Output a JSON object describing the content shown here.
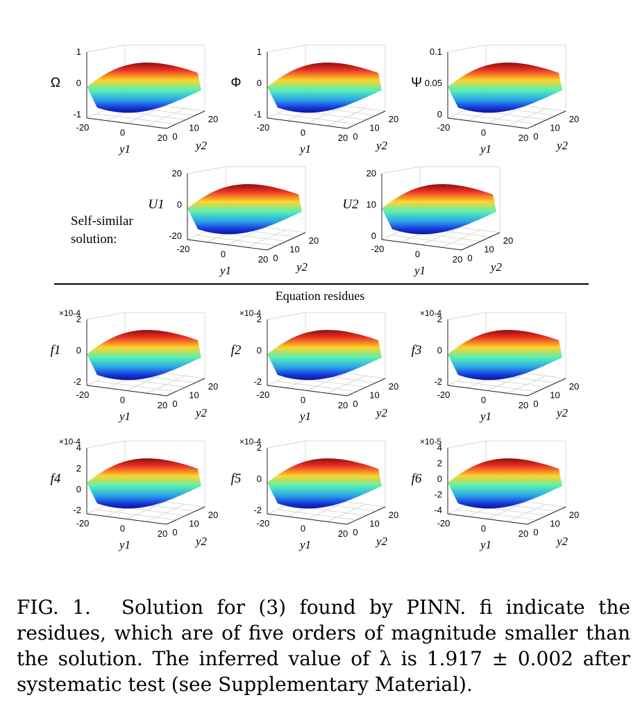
{
  "figure": {
    "side_label": "Self-similar solution:",
    "section_title": "Equation residues",
    "panels": [
      {
        "name": "omega",
        "zlabel": "Ω",
        "zticks": [
          "1",
          "0",
          "-1"
        ],
        "scale": "",
        "xlabel": "y1",
        "ylabel": "y2",
        "xticks": [
          "-20",
          "0",
          "20"
        ],
        "yticks": [
          "0",
          "10",
          "20"
        ],
        "colormap": "jet"
      },
      {
        "name": "phi",
        "zlabel": "Φ",
        "zticks": [
          "1",
          "0",
          "-1"
        ],
        "scale": "",
        "xlabel": "y1",
        "ylabel": "y2",
        "xticks": [
          "-20",
          "0",
          "20"
        ],
        "yticks": [
          "0",
          "10",
          "20"
        ],
        "colormap": "jet"
      },
      {
        "name": "psi",
        "zlabel": "Ψ",
        "zticks": [
          "0.1",
          "0.05",
          "0"
        ],
        "scale": "",
        "xlabel": "y1",
        "ylabel": "y2",
        "xticks": [
          "-20",
          "0",
          "20"
        ],
        "yticks": [
          "0",
          "10",
          "20"
        ],
        "colormap": "jet"
      },
      {
        "name": "u1",
        "zlabel": "U1",
        "zticks": [
          "20",
          "0",
          "-20"
        ],
        "scale": "",
        "xlabel": "y1",
        "ylabel": "y2",
        "xticks": [
          "-20",
          "0",
          "20"
        ],
        "yticks": [
          "0",
          "10",
          "20"
        ],
        "colormap": "jet"
      },
      {
        "name": "u2",
        "zlabel": "U2",
        "zticks": [
          "20",
          "10",
          "0"
        ],
        "scale": "",
        "xlabel": "y1",
        "ylabel": "y2",
        "xticks": [
          "-20",
          "0",
          "20"
        ],
        "yticks": [
          "0",
          "10",
          "20"
        ],
        "colormap": "jet"
      },
      {
        "name": "f1",
        "zlabel": "f1",
        "zticks": [
          "2",
          "0",
          "-2"
        ],
        "scale": "×10-4",
        "xlabel": "y1",
        "ylabel": "y2",
        "xticks": [
          "-20",
          "0",
          "20"
        ],
        "yticks": [
          "0",
          "10",
          "20"
        ],
        "colormap": "jet"
      },
      {
        "name": "f2",
        "zlabel": "f2",
        "zticks": [
          "2",
          "0",
          "-2"
        ],
        "scale": "×10-4",
        "xlabel": "y1",
        "ylabel": "y2",
        "xticks": [
          "-20",
          "0",
          "20"
        ],
        "yticks": [
          "0",
          "10",
          "20"
        ],
        "colormap": "jet"
      },
      {
        "name": "f3",
        "zlabel": "f3",
        "zticks": [
          "2",
          "0",
          "-2"
        ],
        "scale": "×10-4",
        "xlabel": "y1",
        "ylabel": "y2",
        "xticks": [
          "-20",
          "0",
          "20"
        ],
        "yticks": [
          "0",
          "10",
          "20"
        ],
        "colormap": "jet"
      },
      {
        "name": "f4",
        "zlabel": "f4",
        "zticks": [
          "4",
          "2",
          "0",
          "-2"
        ],
        "scale": "×10-4",
        "xlabel": "y1",
        "ylabel": "y2",
        "xticks": [
          "-20",
          "0",
          "20"
        ],
        "yticks": [
          "0",
          "10",
          "20"
        ],
        "colormap": "jet"
      },
      {
        "name": "f5",
        "zlabel": "f5",
        "zticks": [
          "2",
          "0",
          "-2"
        ],
        "scale": "×10-4",
        "xlabel": "y1",
        "ylabel": "y2",
        "xticks": [
          "-20",
          "0",
          "20"
        ],
        "yticks": [
          "0",
          "10",
          "20"
        ],
        "colormap": "jet"
      },
      {
        "name": "f6",
        "zlabel": "f6",
        "zticks": [
          "4",
          "2",
          "0",
          "-2",
          "-4"
        ],
        "scale": "×10-5",
        "xlabel": "y1",
        "ylabel": "y2",
        "xticks": [
          "-20",
          "0",
          "20"
        ],
        "yticks": [
          "0",
          "10",
          "20"
        ],
        "colormap": "jet"
      }
    ]
  },
  "caption": {
    "label": "FIG. 1.",
    "text": "Solution for (3) found by PINN. fi indicate the residues, which are of five orders of magnitude smaller than the solution. The inferred value of λ is 1.917 ± 0.002 after systematic test (see Supplementary Material)."
  }
}
